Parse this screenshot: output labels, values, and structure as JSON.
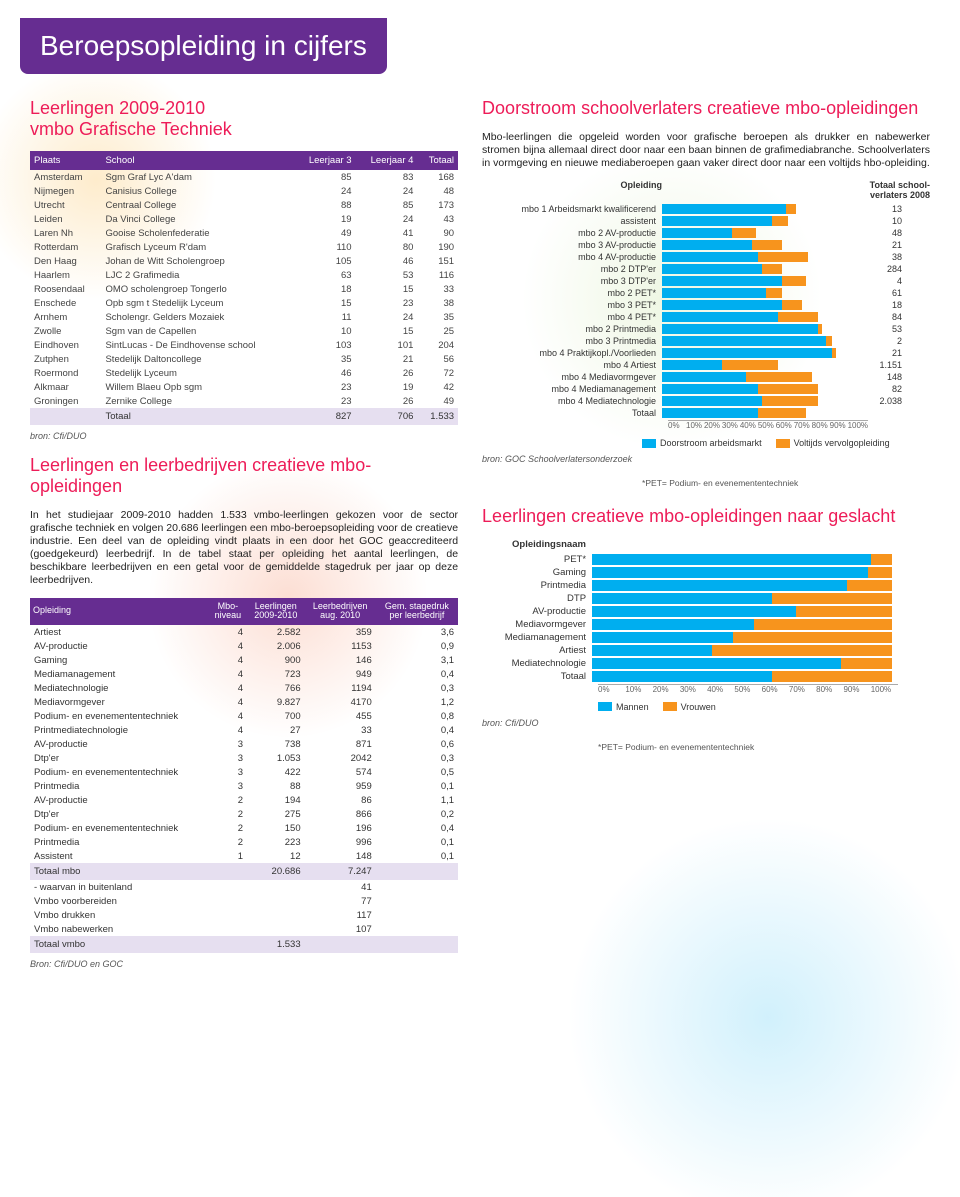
{
  "colors": {
    "banner_bg": "#662d91",
    "heading": "#ed1c58",
    "bar_blue": "#00aeef",
    "bar_orange": "#f7941d",
    "table_header": "#662d91",
    "table_subtotal": "#e6dff0"
  },
  "page_title": "Beroepsopleiding in cijfers",
  "t1": {
    "heading": "Leerlingen 2009-2010\nvmbo Grafische Techniek",
    "cols": [
      "Plaats",
      "School",
      "Leerjaar 3",
      "Leerjaar 4",
      "Totaal"
    ],
    "rows": [
      [
        "Amsterdam",
        "Sgm Graf Lyc A'dam",
        "85",
        "83",
        "168"
      ],
      [
        "Nijmegen",
        "Canisius College",
        "24",
        "24",
        "48"
      ],
      [
        "Utrecht",
        "Centraal College",
        "88",
        "85",
        "173"
      ],
      [
        "Leiden",
        "Da Vinci College",
        "19",
        "24",
        "43"
      ],
      [
        "Laren Nh",
        "Gooise Scholenfederatie",
        "49",
        "41",
        "90"
      ],
      [
        "Rotterdam",
        "Grafisch Lyceum R'dam",
        "110",
        "80",
        "190"
      ],
      [
        "Den Haag",
        "Johan de Witt Scholengroep",
        "105",
        "46",
        "151"
      ],
      [
        "Haarlem",
        "LJC 2 Grafimedia",
        "63",
        "53",
        "116"
      ],
      [
        "Roosendaal",
        "OMO scholengroep Tongerlo",
        "18",
        "15",
        "33"
      ],
      [
        "Enschede",
        "Opb sgm t Stedelijk Lyceum",
        "15",
        "23",
        "38"
      ],
      [
        "Arnhem",
        "Scholengr. Gelders Mozaiek",
        "11",
        "24",
        "35"
      ],
      [
        "Zwolle",
        "Sgm van de Capellen",
        "10",
        "15",
        "25"
      ],
      [
        "Eindhoven",
        "SintLucas - De Eindhovense school",
        "103",
        "101",
        "204"
      ],
      [
        "Zutphen",
        "Stedelijk Daltoncollege",
        "35",
        "21",
        "56"
      ],
      [
        "Roermond",
        "Stedelijk Lyceum",
        "46",
        "26",
        "72"
      ],
      [
        "Alkmaar",
        "Willem Blaeu Opb sgm",
        "23",
        "19",
        "42"
      ],
      [
        "Groningen",
        "Zernike College",
        "23",
        "26",
        "49"
      ]
    ],
    "total": [
      "",
      "Totaal",
      "827",
      "706",
      "1.533"
    ],
    "source": "bron: Cfi/DUO"
  },
  "midtext": {
    "heading": "Leerlingen en leerbedrijven creatieve mbo-opleidingen",
    "para": "In het studiejaar 2009-2010 hadden 1.533 vmbo-leerlingen gekozen voor de sector grafische techniek en volgen 20.686 leerlingen een mbo-beroepsopleiding voor de creatieve industrie. Een deel van de opleiding vindt plaats in een door het GOC geaccrediteerd (goedgekeurd) leerbedrijf. In de tabel staat per opleiding het aantal leerlingen, de beschikbare leerbedrijven en een getal voor de gemiddelde stagedruk per jaar op deze leerbedrijven.",
    "bold1": "In het studiejaar 2009-2010 hadden 1.533"
  },
  "t2": {
    "cols": [
      "Opleiding",
      "Mbo-\nniveau",
      "Leerlingen\n2009-2010",
      "Leerbedrijven\naug. 2010",
      "Gem. stagedruk\nper leerbedrijf"
    ],
    "rows": [
      [
        "Artiest",
        "4",
        "2.582",
        "359",
        "3,6"
      ],
      [
        "AV-productie",
        "4",
        "2.006",
        "1153",
        "0,9"
      ],
      [
        "Gaming",
        "4",
        "900",
        "146",
        "3,1"
      ],
      [
        "Mediamanagement",
        "4",
        "723",
        "949",
        "0,4"
      ],
      [
        "Mediatechnologie",
        "4",
        "766",
        "1194",
        "0,3"
      ],
      [
        "Mediavormgever",
        "4",
        "9.827",
        "4170",
        "1,2"
      ],
      [
        "Podium- en evenemententechniek",
        "4",
        "700",
        "455",
        "0,8"
      ],
      [
        "Printmediatechnologie",
        "4",
        "27",
        "33",
        "0,4"
      ],
      [
        "AV-productie",
        "3",
        "738",
        "871",
        "0,6"
      ],
      [
        "Dtp'er",
        "3",
        "1.053",
        "2042",
        "0,3"
      ],
      [
        "Podium- en evenemententechniek",
        "3",
        "422",
        "574",
        "0,5"
      ],
      [
        "Printmedia",
        "3",
        "88",
        "959",
        "0,1"
      ],
      [
        "AV-productie",
        "2",
        "194",
        "86",
        "1,1"
      ],
      [
        "Dtp'er",
        "2",
        "275",
        "866",
        "0,2"
      ],
      [
        "Podium- en evenemententechniek",
        "2",
        "150",
        "196",
        "0,4"
      ],
      [
        "Printmedia",
        "2",
        "223",
        "996",
        "0,1"
      ],
      [
        "Assistent",
        "1",
        "12",
        "148",
        "0,1"
      ]
    ],
    "sub1": [
      "Totaal mbo",
      "",
      "20.686",
      "7.247",
      ""
    ],
    "sub2": [
      "- waarvan in buitenland",
      "",
      "",
      "41",
      ""
    ],
    "vmbo": [
      [
        "Vmbo voorbereiden",
        "",
        "",
        "77",
        ""
      ],
      [
        "Vmbo drukken",
        "",
        "",
        "117",
        ""
      ],
      [
        "Vmbo nabewerken",
        "",
        "",
        "107",
        ""
      ]
    ],
    "total": [
      "Totaal vmbo",
      "",
      "1.533",
      "",
      ""
    ],
    "source": "Bron: Cfi/DUO en GOC"
  },
  "right_intro": {
    "heading": "Doorstroom schoolverlaters creatieve mbo-opleidingen",
    "para": "Mbo-leerlingen die opgeleid worden voor grafische beroepen als drukker en nabewerker stromen bijna allemaal direct door naar een baan binnen de grafimediabranche. Schoolverlaters in vormgeving en nieuwe mediaberoepen gaan vaker direct door naar een voltijds hbo-opleiding."
  },
  "chart1": {
    "head_left": "Opleiding",
    "head_right": "Totaal school-\nverlaters 2008",
    "seg1_color": "#00aeef",
    "seg2_color": "#f7941d",
    "axis": [
      "0%",
      "10%",
      "20%",
      "30%",
      "40%",
      "50%",
      "60%",
      "70%",
      "80%",
      "90%",
      "100%"
    ],
    "rows": [
      {
        "label": "mbo 1 Arbeidsmarkt kwalificerend",
        "a": 62,
        "b": 5,
        "val": "13"
      },
      {
        "label": "assistent",
        "a": 55,
        "b": 8,
        "val": "10"
      },
      {
        "label": "mbo 2 AV-productie",
        "a": 35,
        "b": 12,
        "val": "48"
      },
      {
        "label": "mbo 3 AV-productie",
        "a": 45,
        "b": 15,
        "val": "21"
      },
      {
        "label": "mbo 4 AV-productie",
        "a": 48,
        "b": 25,
        "val": "38"
      },
      {
        "label": "mbo 2 DTP'er",
        "a": 50,
        "b": 10,
        "val": "284"
      },
      {
        "label": "mbo 3 DTP'er",
        "a": 60,
        "b": 12,
        "val": "4"
      },
      {
        "label": "mbo 2 PET*",
        "a": 52,
        "b": 8,
        "val": "61"
      },
      {
        "label": "mbo 3 PET*",
        "a": 60,
        "b": 10,
        "val": "18"
      },
      {
        "label": "mbo 4 PET*",
        "a": 58,
        "b": 20,
        "val": "84"
      },
      {
        "label": "mbo 2 Printmedia",
        "a": 78,
        "b": 2,
        "val": "53"
      },
      {
        "label": "mbo 3 Printmedia",
        "a": 82,
        "b": 3,
        "val": "2"
      },
      {
        "label": "mbo 4 Praktijkopl./Voorlieden",
        "a": 85,
        "b": 2,
        "val": "21"
      },
      {
        "label": "mbo 4 Artiest",
        "a": 30,
        "b": 28,
        "val": "1.151"
      },
      {
        "label": "mbo 4 Mediavormgever",
        "a": 42,
        "b": 33,
        "val": "148"
      },
      {
        "label": "mbo 4 Mediamanagement",
        "a": 48,
        "b": 30,
        "val": "82"
      },
      {
        "label": "mbo 4 Mediatechnologie",
        "a": 50,
        "b": 28,
        "val": "2.038"
      },
      {
        "label": "Totaal",
        "a": 48,
        "b": 24,
        "val": ""
      }
    ],
    "legend": [
      {
        "color": "#00aeef",
        "label": "Doorstroom arbeidsmarkt"
      },
      {
        "color": "#f7941d",
        "label": "Voltijds vervolgopleiding"
      }
    ],
    "footnote": "*PET= Podium- en evenemententechniek",
    "source": "bron: GOC Schoolverlatersonderzoek"
  },
  "chart2": {
    "heading": "Leerlingen creatieve mbo-opleidingen naar geslacht",
    "head_left": "Opleidingsnaam",
    "seg1_color": "#00aeef",
    "seg2_color": "#f7941d",
    "axis": [
      "0%",
      "10%",
      "20%",
      "30%",
      "40%",
      "50%",
      "60%",
      "70%",
      "80%",
      "90%",
      "100%"
    ],
    "rows": [
      {
        "label": "PET*",
        "m": 93,
        "v": 7
      },
      {
        "label": "Gaming",
        "m": 92,
        "v": 8
      },
      {
        "label": "Printmedia",
        "m": 85,
        "v": 15
      },
      {
        "label": "DTP",
        "m": 60,
        "v": 40
      },
      {
        "label": "AV-productie",
        "m": 68,
        "v": 32
      },
      {
        "label": "Mediavormgever",
        "m": 54,
        "v": 46
      },
      {
        "label": "Mediamanagement",
        "m": 47,
        "v": 53
      },
      {
        "label": "Artiest",
        "m": 40,
        "v": 60
      },
      {
        "label": "Mediatechnologie",
        "m": 83,
        "v": 17
      },
      {
        "label": "Totaal",
        "m": 60,
        "v": 40
      }
    ],
    "legend": [
      {
        "color": "#00aeef",
        "label": "Mannen"
      },
      {
        "color": "#f7941d",
        "label": "Vrouwen"
      }
    ],
    "footnote": "*PET= Podium- en evenemententechniek",
    "source": "bron: Cfi/DUO"
  }
}
